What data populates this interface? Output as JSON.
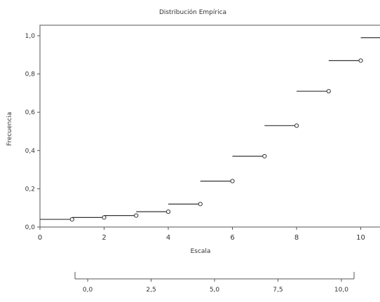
{
  "colors": {
    "axis": "#555555",
    "step": "#333333",
    "marker_stroke": "#333333",
    "marker_fill": "#ffffff",
    "background": "#ffffff"
  },
  "chart_data": [
    {
      "type": "line",
      "subtype": "empirical-cdf-step",
      "title": "Distribución Empírica",
      "xlabel": "Escala",
      "ylabel": "Frecuencia",
      "xlim": [
        0,
        10.6
      ],
      "ylim": [
        0,
        1.0
      ],
      "x_ticks": [
        0,
        2,
        4,
        6,
        8,
        10
      ],
      "x_tick_labels": [
        "0",
        "2",
        "4",
        "6",
        "8",
        "10"
      ],
      "y_ticks": [
        0,
        0.2,
        0.4,
        0.6,
        0.8,
        1.0
      ],
      "y_tick_labels": [
        "0,0",
        "0,2",
        "0,4",
        "0,6",
        "0,8",
        "1,0"
      ],
      "grid": false,
      "steps": [
        {
          "x_start": 0.0,
          "x_end": 1.0,
          "y": 0.04
        },
        {
          "x_start": 1.0,
          "x_end": 2.0,
          "y": 0.05
        },
        {
          "x_start": 2.0,
          "x_end": 3.0,
          "y": 0.06
        },
        {
          "x_start": 3.0,
          "x_end": 4.0,
          "y": 0.08
        },
        {
          "x_start": 4.0,
          "x_end": 5.0,
          "y": 0.12
        },
        {
          "x_start": 5.0,
          "x_end": 6.0,
          "y": 0.24
        },
        {
          "x_start": 6.0,
          "x_end": 7.0,
          "y": 0.37
        },
        {
          "x_start": 7.0,
          "x_end": 8.0,
          "y": 0.53
        },
        {
          "x_start": 8.0,
          "x_end": 9.0,
          "y": 0.71
        },
        {
          "x_start": 9.0,
          "x_end": 10.0,
          "y": 0.87
        },
        {
          "x_start": 10.0,
          "x_end": 10.6,
          "y": 0.99
        }
      ]
    },
    {
      "type": "axis",
      "xlim": [
        -0.5,
        10.5
      ],
      "ticks": [
        0,
        2.5,
        5.0,
        7.5,
        10.0
      ],
      "tick_labels": [
        "0,0",
        "2,5",
        "5,0",
        "7,5",
        "10,0"
      ]
    }
  ]
}
